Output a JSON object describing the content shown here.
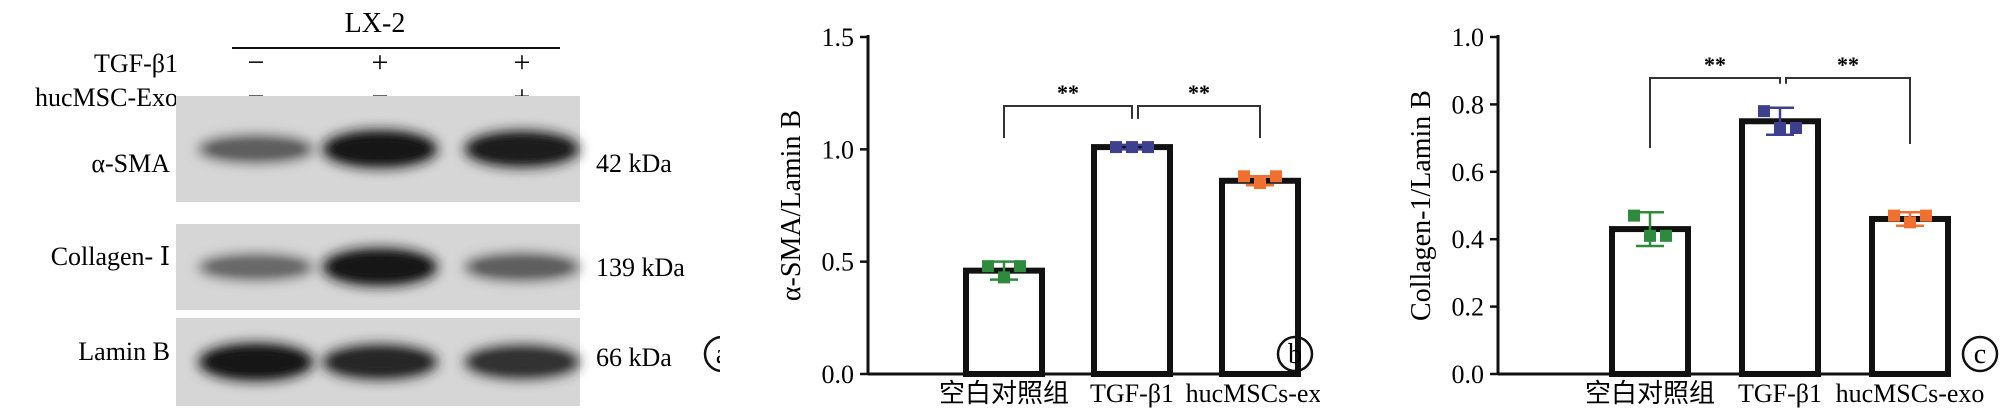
{
  "panel_a": {
    "title": "LX-2",
    "row_labels": [
      "TGF-β1",
      "hucMSC-Exo"
    ],
    "treatments": [
      [
        "−",
        "+",
        "+"
      ],
      [
        "−",
        "−",
        "+"
      ]
    ],
    "blots": [
      {
        "name": "α-SMA",
        "kda": "42 kDa",
        "intensity": [
          0.55,
          0.95,
          0.9
        ]
      },
      {
        "name": "Collagen- Ⅰ",
        "kda": "139 kDa",
        "intensity": [
          0.5,
          0.95,
          0.55
        ]
      },
      {
        "name": "Lamin B",
        "kda": "66 kDa",
        "intensity": [
          0.95,
          0.85,
          0.8
        ]
      }
    ],
    "panel_letter": "a"
  },
  "chart_data": [
    {
      "type": "bar",
      "panel_letter": "b",
      "ylabel": "α-SMA/Lamin B",
      "categories": [
        "空白对照组",
        "TGF-β1",
        "hucMSCs-exo"
      ],
      "values": [
        0.46,
        1.01,
        0.86
      ],
      "errors": [
        0.04,
        0.01,
        0.02
      ],
      "points": [
        [
          0.48,
          0.43,
          0.48
        ],
        [
          1.01,
          1.01,
          1.01
        ],
        [
          0.88,
          0.85,
          0.88
        ]
      ],
      "point_colors": [
        "#2e8b3e",
        "#3f3f8f",
        "#f07030"
      ],
      "ylim": [
        0,
        1.5
      ],
      "yticks": [
        "0.0",
        "0.5",
        "1.0",
        "1.5"
      ],
      "significance": [
        "**",
        "**"
      ]
    },
    {
      "type": "bar",
      "panel_letter": "c",
      "ylabel": "Collagen-1/Lamin B",
      "categories": [
        "空白对照组",
        "TGF-β1",
        "hucMSCs-exo"
      ],
      "values": [
        0.43,
        0.75,
        0.46
      ],
      "errors": [
        0.05,
        0.04,
        0.02
      ],
      "points": [
        [
          0.47,
          0.41,
          0.41
        ],
        [
          0.78,
          0.73,
          0.73
        ],
        [
          0.47,
          0.45,
          0.47
        ]
      ],
      "point_colors": [
        "#2e8b3e",
        "#3f3f8f",
        "#f07030"
      ],
      "ylim": [
        0,
        1.0
      ],
      "yticks": [
        "0.0",
        "0.2",
        "0.4",
        "0.6",
        "0.8",
        "1.0"
      ],
      "significance": [
        "**",
        "**"
      ]
    }
  ]
}
